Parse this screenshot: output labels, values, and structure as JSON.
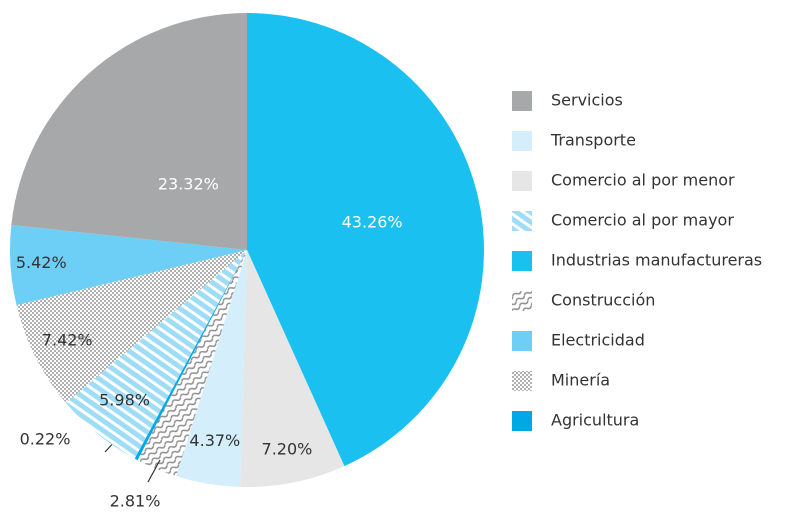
{
  "chart_data": {
    "type": "pie",
    "categories": [
      "Industrias manufactureras",
      "Comercio al por menor",
      "Transporte",
      "Construcción",
      "Agricultura",
      "Comercio al por mayor",
      "Minería",
      "Electricidad",
      "Servicios"
    ],
    "values": [
      43.26,
      7.2,
      4.37,
      2.81,
      0.22,
      5.98,
      7.42,
      5.42,
      23.32
    ],
    "value_labels": [
      "43.26%",
      "7.20%",
      "4.37%",
      "2.81%",
      "0.22%",
      "5.98%",
      "7.42%",
      "5.42%",
      "23.32%"
    ],
    "colors": [
      "#1ac1f0",
      "#e6e6e7",
      "#d4eefb",
      "#b5b5b5",
      "#00a9e6",
      "#9fdcf6",
      "#bdbdbd",
      "#6dcff6",
      "#a7a8aa"
    ],
    "patterns": [
      null,
      null,
      null,
      "wave",
      null,
      "hatch",
      "checker",
      null,
      null
    ]
  }
}
